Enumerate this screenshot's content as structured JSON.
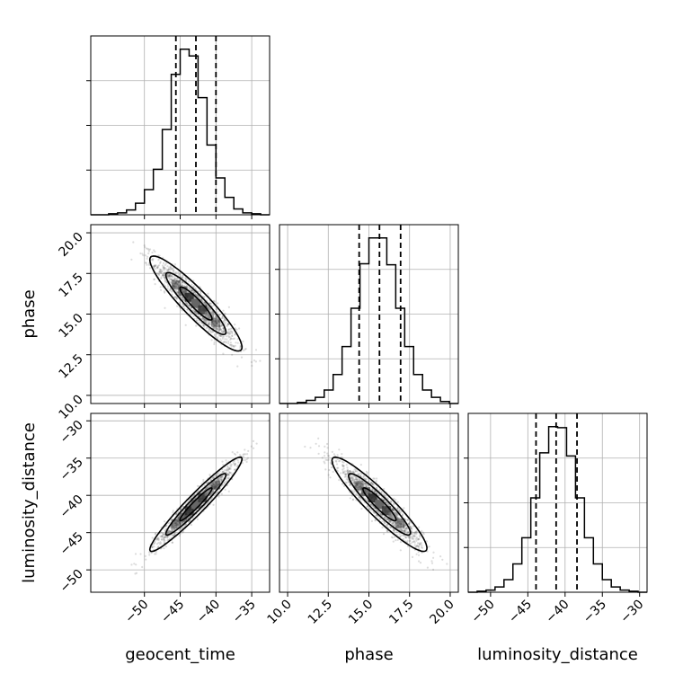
{
  "chart_data": {
    "type": "corner",
    "parameters": [
      {
        "name": "geocent_time",
        "xlabel": "geocent_time",
        "ylabel": "",
        "range": [
          -57.5,
          -32.5
        ],
        "ticks": [
          -50,
          -45,
          -40,
          -35
        ],
        "tick_labels": [
          "−50",
          "−45",
          "−40",
          "−35"
        ],
        "quantiles": [
          -45.6,
          -42.8,
          -40.0
        ]
      },
      {
        "name": "phase",
        "xlabel": "phase",
        "ylabel": "phase",
        "range": [
          9.5,
          20.5
        ],
        "ticks": [
          10.0,
          12.5,
          15.0,
          17.5,
          20.0
        ],
        "tick_labels": [
          "10.0",
          "12.5",
          "15.0",
          "17.5",
          "20.0"
        ],
        "quantiles": [
          14.4,
          15.65,
          16.95
        ]
      },
      {
        "name": "luminosity_distance",
        "xlabel": "luminosity_distance",
        "ylabel": "luminosity_distance",
        "range": [
          -53,
          -29
        ],
        "ticks": [
          -50,
          -45,
          -40,
          -35,
          -30
        ],
        "tick_labels": [
          "−50",
          "−45",
          "−40",
          "−35",
          "−30"
        ],
        "quantiles": [
          -43.9,
          -41.2,
          -38.4
        ]
      }
    ],
    "histograms": [
      {
        "parameter": "geocent_time",
        "bin_edges": [
          -57.5,
          -56.25,
          -55.0,
          -53.75,
          -52.5,
          -51.25,
          -50.0,
          -48.75,
          -47.5,
          -46.25,
          -45.0,
          -43.75,
          -42.5,
          -41.25,
          -40.0,
          -38.75,
          -37.5,
          -36.25,
          -35.0,
          -33.75,
          -32.5
        ],
        "counts": [
          0,
          0,
          1,
          2,
          5,
          12,
          26,
          47,
          88,
          145,
          171,
          164,
          121,
          72,
          38,
          18,
          6,
          2,
          1,
          0
        ]
      },
      {
        "parameter": "phase",
        "bin_edges": [
          9.5,
          10.05,
          10.6,
          11.15,
          11.7,
          12.25,
          12.8,
          13.35,
          13.9,
          14.45,
          15.0,
          15.55,
          16.1,
          16.65,
          17.2,
          17.75,
          18.3,
          18.85,
          19.4,
          19.95,
          20.5
        ],
        "counts": [
          0,
          0,
          1,
          3,
          6,
          13,
          28,
          55,
          92,
          135,
          160,
          160,
          134,
          92,
          55,
          28,
          13,
          6,
          2,
          0
        ]
      },
      {
        "parameter": "luminosity_distance",
        "bin_edges": [
          -53.0,
          -51.8,
          -50.6,
          -49.4,
          -48.2,
          -47.0,
          -45.8,
          -44.6,
          -43.4,
          -42.2,
          -41.0,
          -39.8,
          -38.6,
          -37.4,
          -36.2,
          -35.0,
          -33.8,
          -32.6,
          -31.4,
          -30.2,
          -29.0
        ],
        "counts": [
          0,
          1,
          2,
          5,
          12,
          27,
          52,
          90,
          133,
          158,
          157,
          130,
          90,
          52,
          27,
          12,
          5,
          2,
          1,
          0
        ]
      }
    ],
    "pairs": [
      {
        "x": "geocent_time",
        "y": "phase",
        "mean": [
          -42.8,
          15.65
        ],
        "sd": [
          2.8,
          1.27
        ],
        "correlation": -0.92
      },
      {
        "x": "geocent_time",
        "y": "luminosity_distance",
        "mean": [
          -42.8,
          -41.2
        ],
        "sd": [
          2.8,
          2.75
        ],
        "correlation": 0.96
      },
      {
        "x": "phase",
        "y": "luminosity_distance",
        "mean": [
          15.65,
          -41.2
        ],
        "sd": [
          1.27,
          2.75
        ],
        "correlation": -0.93
      }
    ]
  }
}
